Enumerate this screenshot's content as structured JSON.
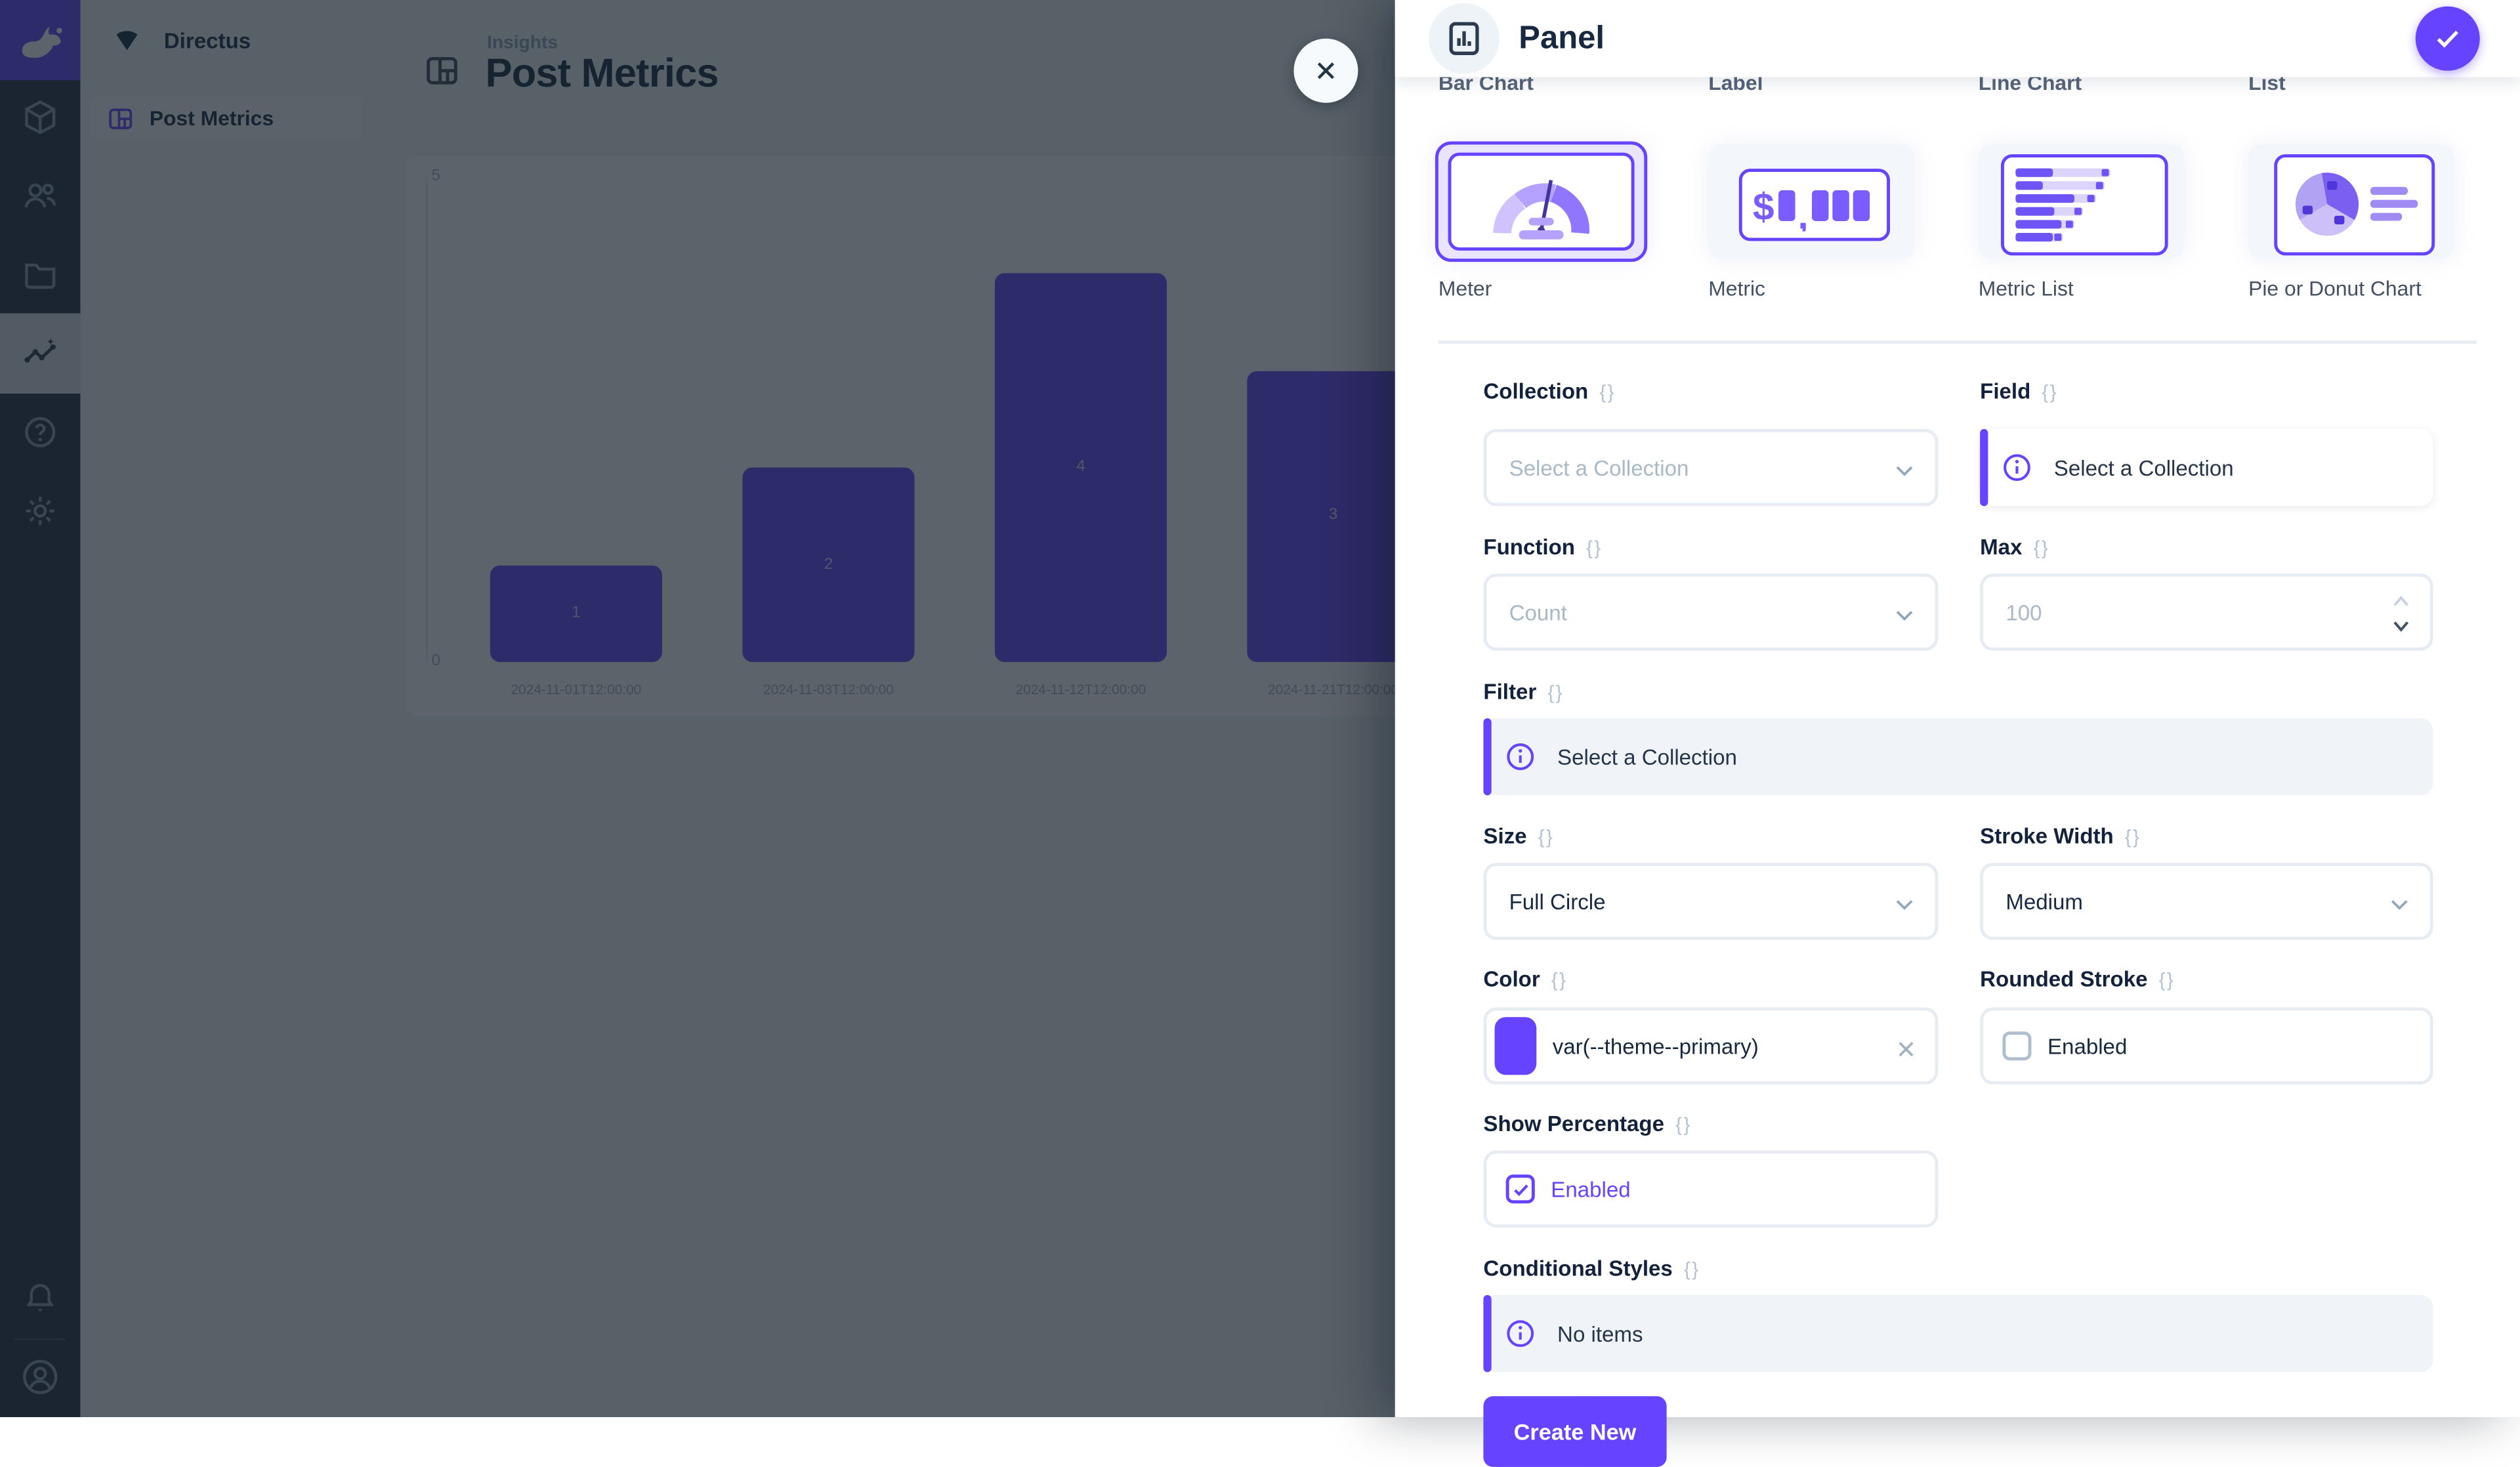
{
  "colors": {
    "primary": "#6644FF",
    "module_bar_bg": "#223140",
    "nav_bg": "#F0F4F9",
    "heading_text": "#172940",
    "notice_gray_bg": "#F0F4F9"
  },
  "module_bar": {
    "icons": [
      {
        "name": "directus-rabbit-logo"
      },
      {
        "name": "content-cube-icon"
      },
      {
        "name": "users-icon"
      },
      {
        "name": "files-folder-icon"
      },
      {
        "name": "insights-activity-icon",
        "active": true
      },
      {
        "name": "help-question-icon"
      },
      {
        "name": "settings-gear-icon"
      },
      {
        "name": "notifications-bell-icon"
      },
      {
        "name": "user-avatar-icon"
      }
    ]
  },
  "nav": {
    "project_name": "Directus",
    "project_icon": "fan-icon",
    "items": [
      {
        "label": "Post Metrics",
        "icon": "dashboard-icon",
        "active": true
      }
    ]
  },
  "page": {
    "breadcrumb": "Insights",
    "title": "Post Metrics",
    "header_icon": "dashboard-icon",
    "close_icon": "close-x"
  },
  "chart_data": {
    "type": "bar",
    "title": "Post Metrics",
    "categories": [
      "2024-11-01T12:00:00",
      "2024-11-03T12:00:00",
      "2024-11-12T12:00:00",
      "2024-11-21T12:00:00"
    ],
    "values": [
      1,
      2,
      4,
      3
    ],
    "data_labels": [
      1,
      2,
      4,
      3
    ],
    "xlabel": "",
    "ylabel": "",
    "ylim": [
      0,
      5
    ],
    "yticks": [
      0,
      5
    ],
    "bar_color": "#6644FF",
    "grid": false,
    "legend": false
  },
  "drawer": {
    "title": "Panel",
    "header_icon": "panel-chart-icon",
    "save_icon": "check",
    "previous_row_labels": [
      "Bar Chart",
      "Label",
      "Line Chart",
      "List"
    ],
    "panel_types": [
      {
        "label": "Meter",
        "icon": "meter-gauge-icon",
        "selected": true
      },
      {
        "label": "Metric",
        "icon": "metric-number-icon",
        "selected": false
      },
      {
        "label": "Metric List",
        "icon": "metric-list-icon",
        "selected": false
      },
      {
        "label": "Pie or Donut Chart",
        "icon": "pie-chart-icon",
        "selected": false
      }
    ],
    "fields": {
      "collection": {
        "label": "Collection",
        "raw_toggle": "{}",
        "placeholder": "Select a Collection"
      },
      "field": {
        "label": "Field",
        "raw_toggle": "{}",
        "notice": "Select a Collection"
      },
      "function": {
        "label": "Function",
        "raw_toggle": "{}",
        "placeholder": "Count"
      },
      "max": {
        "label": "Max",
        "raw_toggle": "{}",
        "placeholder": "100"
      },
      "filter": {
        "label": "Filter",
        "raw_toggle": "{}",
        "notice": "Select a Collection"
      },
      "size": {
        "label": "Size",
        "raw_toggle": "{}",
        "value": "Full Circle"
      },
      "stroke_width": {
        "label": "Stroke Width",
        "raw_toggle": "{}",
        "value": "Medium"
      },
      "color": {
        "label": "Color",
        "raw_toggle": "{}",
        "value": "var(--theme--primary)",
        "swatch_color": "#6644FF"
      },
      "rounded_stroke": {
        "label": "Rounded Stroke",
        "raw_toggle": "{}",
        "checkbox_label": "Enabled",
        "checked": false
      },
      "show_percentage": {
        "label": "Show Percentage",
        "raw_toggle": "{}",
        "checkbox_label": "Enabled",
        "checked": true
      },
      "conditional_styles": {
        "label": "Conditional Styles",
        "raw_toggle": "{}",
        "notice": "No items"
      }
    },
    "create_button_label": "Create New"
  }
}
